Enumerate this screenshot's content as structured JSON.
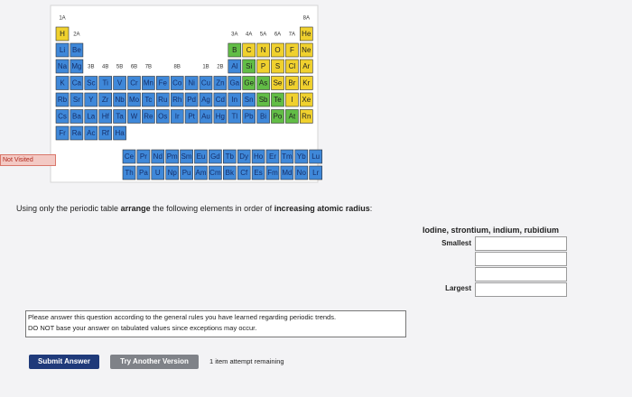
{
  "status": "Not Visited",
  "periodic_table": {
    "rows": [
      [
        "1A",
        null,
        null,
        null,
        null,
        null,
        null,
        null,
        null,
        null,
        null,
        null,
        null,
        null,
        null,
        null,
        null,
        "8A"
      ],
      [
        {
          "symbol": "H",
          "color": "#f0d12e"
        },
        "2A",
        null,
        null,
        null,
        null,
        null,
        null,
        null,
        null,
        null,
        null,
        "3A",
        "4A",
        "5A",
        "6A",
        "7A",
        {
          "symbol": "He",
          "color": "#f0d12e"
        }
      ],
      [
        {
          "symbol": "Li",
          "color": "#3f88d9"
        },
        {
          "symbol": "Be",
          "color": "#3f88d9"
        },
        null,
        null,
        null,
        null,
        null,
        null,
        null,
        null,
        null,
        null,
        {
          "symbol": "B",
          "color": "#62bd46"
        },
        {
          "symbol": "C",
          "color": "#f0d12e"
        },
        {
          "symbol": "N",
          "color": "#f0d12e"
        },
        {
          "symbol": "O",
          "color": "#f0d12e"
        },
        {
          "symbol": "F",
          "color": "#f0d12e"
        },
        {
          "symbol": "Ne",
          "color": "#f0d12e"
        }
      ],
      [
        {
          "symbol": "Na",
          "color": "#3f88d9"
        },
        {
          "symbol": "Mg",
          "color": "#3f88d9"
        },
        "3B",
        "4B",
        "5B",
        "6B",
        "7B",
        null,
        "8B",
        null,
        "1B",
        "2B",
        {
          "symbol": "Al",
          "color": "#3f88d9"
        },
        {
          "symbol": "Si",
          "color": "#62bd46"
        },
        {
          "symbol": "P",
          "color": "#f0d12e"
        },
        {
          "symbol": "S",
          "color": "#f0d12e"
        },
        {
          "symbol": "Cl",
          "color": "#f0d12e"
        },
        {
          "symbol": "Ar",
          "color": "#f0d12e"
        }
      ],
      [
        {
          "symbol": "K",
          "color": "#3f88d9"
        },
        {
          "symbol": "Ca",
          "color": "#3f88d9"
        },
        {
          "symbol": "Sc",
          "color": "#3f88d9"
        },
        {
          "symbol": "Ti",
          "color": "#3f88d9"
        },
        {
          "symbol": "V",
          "color": "#3f88d9"
        },
        {
          "symbol": "Cr",
          "color": "#3f88d9"
        },
        {
          "symbol": "Mn",
          "color": "#3f88d9"
        },
        {
          "symbol": "Fe",
          "color": "#3f88d9"
        },
        {
          "symbol": "Co",
          "color": "#3f88d9"
        },
        {
          "symbol": "Ni",
          "color": "#3f88d9"
        },
        {
          "symbol": "Cu",
          "color": "#3f88d9"
        },
        {
          "symbol": "Zn",
          "color": "#3f88d9"
        },
        {
          "symbol": "Ga",
          "color": "#3f88d9"
        },
        {
          "symbol": "Ge",
          "color": "#62bd46"
        },
        {
          "symbol": "As",
          "color": "#62bd46"
        },
        {
          "symbol": "Se",
          "color": "#f0d12e"
        },
        {
          "symbol": "Br",
          "color": "#f0d12e"
        },
        {
          "symbol": "Kr",
          "color": "#f0d12e"
        }
      ],
      [
        {
          "symbol": "Rb",
          "color": "#3f88d9"
        },
        {
          "symbol": "Sr",
          "color": "#3f88d9"
        },
        {
          "symbol": "Y",
          "color": "#3f88d9"
        },
        {
          "symbol": "Zr",
          "color": "#3f88d9"
        },
        {
          "symbol": "Nb",
          "color": "#3f88d9"
        },
        {
          "symbol": "Mo",
          "color": "#3f88d9"
        },
        {
          "symbol": "Tc",
          "color": "#3f88d9"
        },
        {
          "symbol": "Ru",
          "color": "#3f88d9"
        },
        {
          "symbol": "Rh",
          "color": "#3f88d9"
        },
        {
          "symbol": "Pd",
          "color": "#3f88d9"
        },
        {
          "symbol": "Ag",
          "color": "#3f88d9"
        },
        {
          "symbol": "Cd",
          "color": "#3f88d9"
        },
        {
          "symbol": "In",
          "color": "#3f88d9"
        },
        {
          "symbol": "Sn",
          "color": "#3f88d9"
        },
        {
          "symbol": "Sb",
          "color": "#62bd46"
        },
        {
          "symbol": "Te",
          "color": "#62bd46"
        },
        {
          "symbol": "I",
          "color": "#f0d12e"
        },
        {
          "symbol": "Xe",
          "color": "#f0d12e"
        }
      ],
      [
        {
          "symbol": "Cs",
          "color": "#3f88d9"
        },
        {
          "symbol": "Ba",
          "color": "#3f88d9"
        },
        {
          "symbol": "La",
          "color": "#3f88d9"
        },
        {
          "symbol": "Hf",
          "color": "#3f88d9"
        },
        {
          "symbol": "Ta",
          "color": "#3f88d9"
        },
        {
          "symbol": "W",
          "color": "#3f88d9"
        },
        {
          "symbol": "Re",
          "color": "#3f88d9"
        },
        {
          "symbol": "Os",
          "color": "#3f88d9"
        },
        {
          "symbol": "Ir",
          "color": "#3f88d9"
        },
        {
          "symbol": "Pt",
          "color": "#3f88d9"
        },
        {
          "symbol": "Au",
          "color": "#3f88d9"
        },
        {
          "symbol": "Hg",
          "color": "#3f88d9"
        },
        {
          "symbol": "Tl",
          "color": "#3f88d9"
        },
        {
          "symbol": "Pb",
          "color": "#3f88d9"
        },
        {
          "symbol": "Bi",
          "color": "#3f88d9"
        },
        {
          "symbol": "Po",
          "color": "#62bd46"
        },
        {
          "symbol": "At",
          "color": "#62bd46"
        },
        {
          "symbol": "Rn",
          "color": "#f0d12e"
        }
      ],
      [
        {
          "symbol": "Fr",
          "color": "#3f88d9"
        },
        {
          "symbol": "Ra",
          "color": "#3f88d9"
        },
        {
          "symbol": "Ac",
          "color": "#3f88d9"
        },
        {
          "symbol": "Rf",
          "color": "#3f88d9"
        },
        {
          "symbol": "Ha",
          "color": "#3f88d9"
        }
      ]
    ],
    "f_rows": [
      [
        {
          "symbol": "Ce",
          "color": "#3f88d9"
        },
        {
          "symbol": "Pr",
          "color": "#3f88d9"
        },
        {
          "symbol": "Nd",
          "color": "#3f88d9"
        },
        {
          "symbol": "Pm",
          "color": "#3f88d9"
        },
        {
          "symbol": "Sm",
          "color": "#3f88d9"
        },
        {
          "symbol": "Eu",
          "color": "#3f88d9"
        },
        {
          "symbol": "Gd",
          "color": "#3f88d9"
        },
        {
          "symbol": "Tb",
          "color": "#3f88d9"
        },
        {
          "symbol": "Dy",
          "color": "#3f88d9"
        },
        {
          "symbol": "Ho",
          "color": "#3f88d9"
        },
        {
          "symbol": "Er",
          "color": "#3f88d9"
        },
        {
          "symbol": "Tm",
          "color": "#3f88d9"
        },
        {
          "symbol": "Yb",
          "color": "#3f88d9"
        },
        {
          "symbol": "Lu",
          "color": "#3f88d9"
        }
      ],
      [
        {
          "symbol": "Th",
          "color": "#3f88d9"
        },
        {
          "symbol": "Pa",
          "color": "#3f88d9"
        },
        {
          "symbol": "U",
          "color": "#3f88d9"
        },
        {
          "symbol": "Np",
          "color": "#3f88d9"
        },
        {
          "symbol": "Pu",
          "color": "#3f88d9"
        },
        {
          "symbol": "Am",
          "color": "#3f88d9"
        },
        {
          "symbol": "Cm",
          "color": "#3f88d9"
        },
        {
          "symbol": "Bk",
          "color": "#3f88d9"
        },
        {
          "symbol": "Cf",
          "color": "#3f88d9"
        },
        {
          "symbol": "Es",
          "color": "#3f88d9"
        },
        {
          "symbol": "Fm",
          "color": "#3f88d9"
        },
        {
          "symbol": "Md",
          "color": "#3f88d9"
        },
        {
          "symbol": "No",
          "color": "#3f88d9"
        },
        {
          "symbol": "Lr",
          "color": "#3f88d9"
        }
      ]
    ]
  },
  "question": {
    "parts": [
      "Using only the periodic table ",
      "arrange",
      " the following elements in order of ",
      "increasing atomic radius",
      ":"
    ],
    "elements": "Iodine, strontium, indium, rubidium",
    "smallest": "Smallest",
    "largest": "Largest"
  },
  "note": [
    "Please answer this question according to the general rules you have learned regarding periodic trends.",
    "DO NOT base your answer on tabulated values since exceptions may occur."
  ],
  "buttons": {
    "submit": "Submit Answer",
    "try_another": "Try Another Version"
  },
  "attempts": "1 item attempt remaining"
}
